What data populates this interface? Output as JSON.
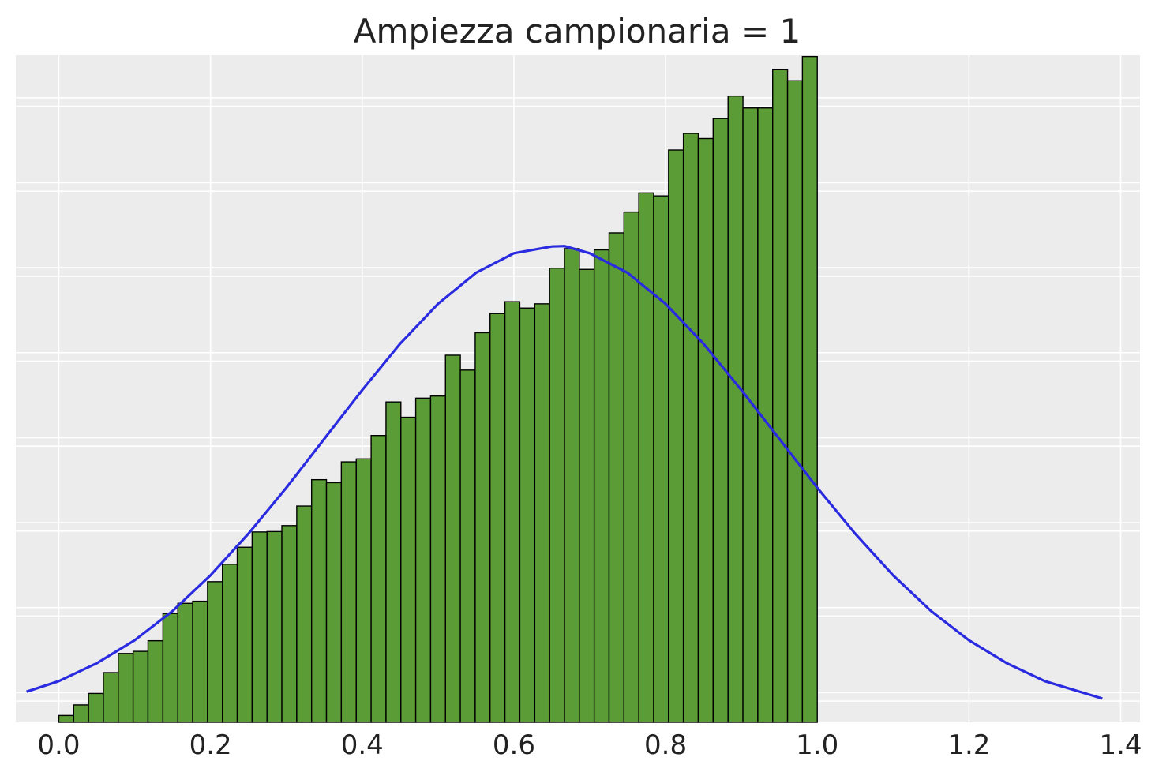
{
  "chart_data": {
    "type": "bar",
    "title": "Ampiezza campionaria = 1",
    "xlabel": "",
    "ylabel": "",
    "xlim": [
      -0.0567,
      1.4255
    ],
    "ylim": [
      0,
      1.57
    ],
    "x_ticks": [
      0.0,
      0.2,
      0.4,
      0.6,
      0.8,
      1.0,
      1.2,
      1.4
    ],
    "x_tick_labels": [
      "0.0",
      "0.2",
      "0.4",
      "0.6",
      "0.8",
      "1.0",
      "1.2",
      "1.4"
    ],
    "y_tick_labels_visible": false,
    "grid": true,
    "histogram": {
      "bin_width": 0.01961,
      "bin_starts": [
        0.0,
        0.0196,
        0.0392,
        0.0588,
        0.0784,
        0.098,
        0.1176,
        0.1373,
        0.1569,
        0.1765,
        0.1961,
        0.2157,
        0.2353,
        0.2549,
        0.2745,
        0.2941,
        0.3137,
        0.3333,
        0.3529,
        0.3725,
        0.3922,
        0.4118,
        0.4314,
        0.451,
        0.4706,
        0.4902,
        0.5098,
        0.5294,
        0.549,
        0.5686,
        0.5882,
        0.6078,
        0.6275,
        0.6471,
        0.6667,
        0.6863,
        0.7059,
        0.7255,
        0.7451,
        0.7647,
        0.7843,
        0.8039,
        0.8235,
        0.8431,
        0.8627,
        0.8824,
        0.902,
        0.9216,
        0.9412,
        0.9608,
        0.9804
      ],
      "densities": [
        0.016,
        0.041,
        0.068,
        0.117,
        0.162,
        0.167,
        0.192,
        0.256,
        0.28,
        0.285,
        0.331,
        0.372,
        0.412,
        0.448,
        0.449,
        0.463,
        0.509,
        0.571,
        0.564,
        0.613,
        0.62,
        0.675,
        0.754,
        0.718,
        0.763,
        0.768,
        0.864,
        0.829,
        0.917,
        0.962,
        0.99,
        0.975,
        0.985,
        1.069,
        1.115,
        1.066,
        1.112,
        1.152,
        1.201,
        1.246,
        1.239,
        1.347,
        1.386,
        1.374,
        1.421,
        1.474,
        1.446,
        1.446,
        1.536,
        1.51,
        1.567
      ],
      "color": "#5b9c37",
      "edge_color": "#000000"
    },
    "series": [
      {
        "type": "line",
        "color": "#2a2ae0",
        "x": [
          -0.0425,
          0.0,
          0.05,
          0.1,
          0.15,
          0.2,
          0.25,
          0.3,
          0.35,
          0.4,
          0.45,
          0.5,
          0.55,
          0.6,
          0.65,
          0.6667,
          0.7,
          0.75,
          0.8,
          0.85,
          0.9,
          0.95,
          1.0,
          1.05,
          1.1,
          1.15,
          1.2,
          1.25,
          1.3,
          1.3758
        ],
        "y": [
          0.072,
          0.097,
          0.139,
          0.193,
          0.262,
          0.346,
          0.444,
          0.552,
          0.667,
          0.782,
          0.891,
          0.985,
          1.058,
          1.104,
          1.12,
          1.121,
          1.104,
          1.058,
          0.985,
          0.891,
          0.782,
          0.667,
          0.552,
          0.444,
          0.346,
          0.262,
          0.193,
          0.139,
          0.097,
          0.056
        ]
      }
    ],
    "colors": {
      "plot_background": "#ececec",
      "grid": "#ffffff",
      "text": "#222222"
    }
  }
}
